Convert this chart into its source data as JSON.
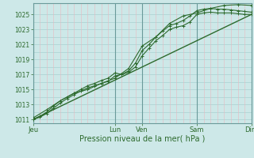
{
  "xlabel": "Pression niveau de la mer( hPa )",
  "bg_color": "#cde8e8",
  "line_color": "#2d6a2d",
  "grid_h_color": "#a8d0d0",
  "grid_v_minor_color": "#e8b8c0",
  "grid_v_major_color": "#6a9a9a",
  "ylim": [
    1010.5,
    1026.5
  ],
  "yticks": [
    1011,
    1013,
    1015,
    1017,
    1019,
    1021,
    1023,
    1025
  ],
  "xlim": [
    0,
    8.0
  ],
  "x_day_labels": [
    "Jeu",
    "Lun",
    "Ven",
    "Sam",
    "Dim"
  ],
  "x_day_positions": [
    0.0,
    3.0,
    4.0,
    6.0,
    8.0
  ],
  "num_days": 8,
  "series": [
    {
      "x": [
        0,
        0.25,
        0.5,
        0.75,
        1.0,
        1.25,
        1.5,
        1.75,
        2.0,
        2.25,
        2.5,
        2.75,
        3.0,
        3.25,
        3.5,
        3.75,
        4.0,
        4.25,
        4.5,
        4.75,
        5.0,
        5.25,
        5.5,
        5.75,
        6.0,
        6.25,
        6.5,
        6.75,
        7.0,
        7.25,
        7.5,
        7.75,
        8.0
      ],
      "y": [
        1011.0,
        1011.3,
        1011.8,
        1012.5,
        1013.2,
        1013.8,
        1014.3,
        1014.8,
        1015.2,
        1015.5,
        1015.8,
        1016.1,
        1016.8,
        1017.0,
        1017.3,
        1018.0,
        1019.5,
        1020.5,
        1021.5,
        1022.2,
        1023.0,
        1023.3,
        1023.5,
        1024.0,
        1025.0,
        1025.2,
        1025.3,
        1025.2,
        1025.2,
        1025.2,
        1025.1,
        1025.0,
        1025.0
      ],
      "marker": "+",
      "linestyle": "-",
      "lw": 0.8,
      "ms": 3
    },
    {
      "x": [
        0,
        0.25,
        0.5,
        0.75,
        1.0,
        1.25,
        1.5,
        1.75,
        2.0,
        2.25,
        2.5,
        2.75,
        3.0,
        3.25,
        3.5,
        3.75,
        4.0,
        4.25,
        4.5,
        4.75,
        5.0,
        5.25,
        5.5,
        5.75,
        6.0,
        6.25,
        6.5,
        6.75,
        7.0,
        7.25,
        7.5,
        7.75,
        8.0
      ],
      "y": [
        1011.0,
        1011.4,
        1012.0,
        1012.8,
        1013.5,
        1014.0,
        1014.5,
        1015.0,
        1015.5,
        1015.8,
        1016.2,
        1016.5,
        1017.2,
        1017.0,
        1017.5,
        1018.5,
        1020.2,
        1021.0,
        1022.0,
        1022.8,
        1023.5,
        1023.8,
        1024.2,
        1024.8,
        1025.5,
        1025.7,
        1025.8,
        1025.7,
        1025.7,
        1025.6,
        1025.5,
        1025.4,
        1025.3
      ],
      "marker": "+",
      "linestyle": "-",
      "lw": 0.8,
      "ms": 3
    },
    {
      "x": [
        0,
        0.5,
        1.0,
        1.5,
        2.0,
        2.5,
        3.0,
        3.5,
        4.0,
        4.5,
        5.0,
        5.5,
        6.0,
        6.5,
        7.0,
        7.5,
        8.0
      ],
      "y": [
        1011.2,
        1012.3,
        1013.5,
        1014.5,
        1015.0,
        1015.8,
        1016.5,
        1017.8,
        1020.8,
        1022.0,
        1023.8,
        1024.8,
        1025.2,
        1025.8,
        1026.2,
        1026.3,
        1026.2
      ],
      "marker": "+",
      "linestyle": "-",
      "lw": 0.8,
      "ms": 3
    },
    {
      "x": [
        0,
        8.0
      ],
      "y": [
        1011.0,
        1025.0
      ],
      "marker": null,
      "linestyle": "-",
      "lw": 1.0,
      "ms": 0
    }
  ]
}
